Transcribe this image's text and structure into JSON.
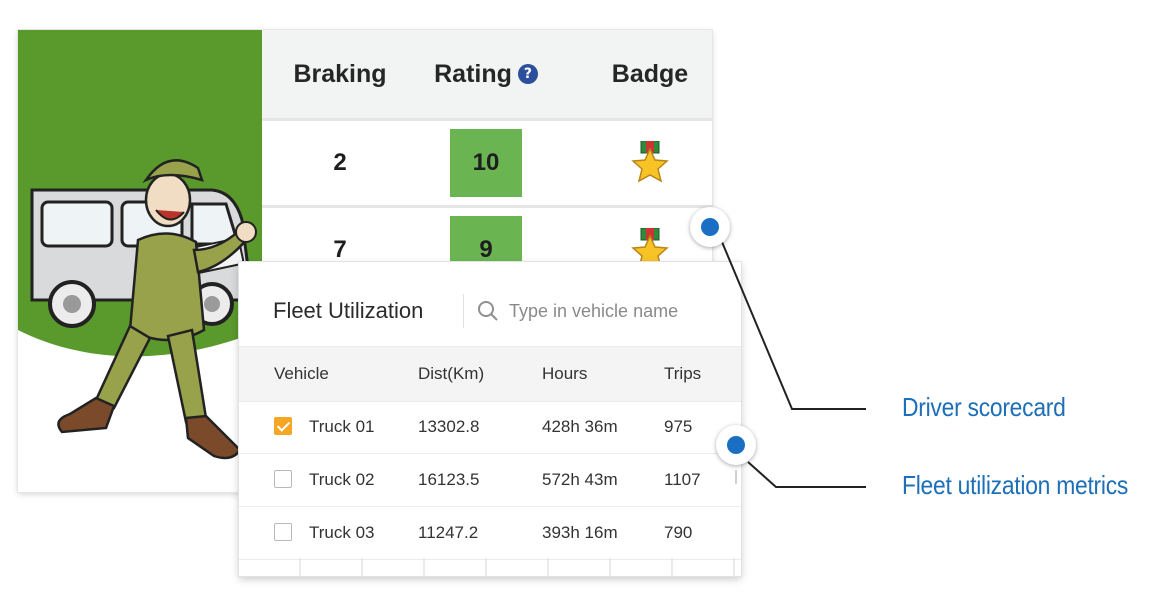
{
  "scorecard": {
    "columns": {
      "braking": "Braking",
      "rating": "Rating",
      "badge": "Badge"
    },
    "help_glyph": "?",
    "rows": [
      {
        "braking": "2",
        "rating": "10",
        "badge_icon": "star-medal-icon"
      },
      {
        "braking": "7",
        "rating": "9",
        "badge_icon": "star-medal-icon"
      }
    ],
    "rating_color": "#6ab552",
    "illustration": "cartoon-driver-with-van"
  },
  "fleet": {
    "title": "Fleet Utilization",
    "search_placeholder": "Type in vehicle name",
    "columns": {
      "vehicle": "Vehicle",
      "dist": "Dist(Km)",
      "hours": "Hours",
      "trips": "Trips"
    },
    "rows": [
      {
        "checked": true,
        "vehicle": "Truck 01",
        "dist": "13302.8",
        "hours": "428h 36m",
        "trips": "975"
      },
      {
        "checked": false,
        "vehicle": "Truck 02",
        "dist": "16123.5",
        "hours": "572h 43m",
        "trips": "1107"
      },
      {
        "checked": false,
        "vehicle": "Truck 03",
        "dist": "11247.2",
        "hours": "393h 16m",
        "trips": "790"
      }
    ],
    "accent_color": "#f5a623"
  },
  "callouts": {
    "driver_scorecard": "Driver scorecard",
    "fleet_utilization": "Fleet utilization metrics",
    "color": "#1d6fb8"
  }
}
